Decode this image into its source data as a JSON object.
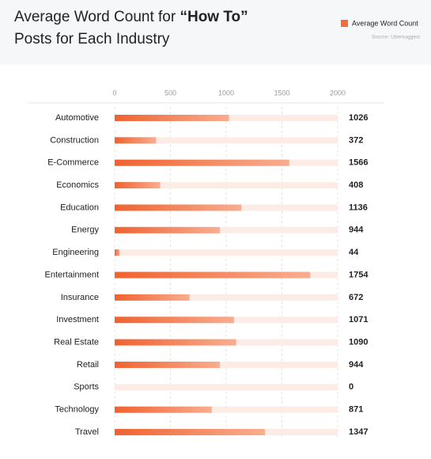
{
  "chart_data": {
    "type": "bar",
    "orientation": "horizontal",
    "title_parts": [
      "Average Word Count for ",
      "“How To”",
      "Posts for Each Industry"
    ],
    "source": "Source: Ubersuggest",
    "series": [
      {
        "name": "Average Word Count",
        "color": "#f26b3a",
        "values": [
          1026,
          372,
          1566,
          408,
          1136,
          944,
          44,
          1754,
          672,
          1071,
          1090,
          944,
          0,
          871,
          1347
        ]
      }
    ],
    "categories": [
      "Automotive",
      "Construction",
      "E-Commerce",
      "Economics",
      "Education",
      "Energy",
      "Engineering",
      "Entertainment",
      "Insurance",
      "Investment",
      "Real Estate",
      "Retail",
      "Sports",
      "Technology",
      "Travel"
    ],
    "xlim": [
      0,
      2000
    ],
    "xticks": [
      0,
      500,
      1000,
      1500,
      2000
    ],
    "grid": true
  }
}
